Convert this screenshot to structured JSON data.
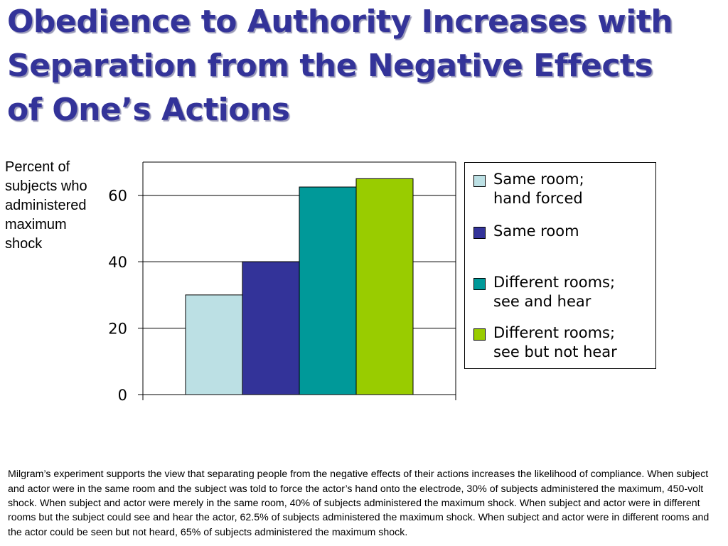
{
  "title": {
    "lines": [
      "Obedience to Authority Increases with",
      "Separation from the Negative Effects",
      "of One’s Actions"
    ]
  },
  "ylabel": {
    "lines": [
      "Percent of",
      "subjects who",
      "administered",
      "maximum",
      "shock"
    ]
  },
  "chart_data": {
    "type": "bar",
    "categories": [
      ""
    ],
    "series": [
      {
        "name": "Same room; hand forced",
        "values": [
          30
        ],
        "color": "#bce0e4"
      },
      {
        "name": "Same room",
        "values": [
          40
        ],
        "color": "#333399"
      },
      {
        "name": "Different rooms; see and hear",
        "values": [
          62.5
        ],
        "color": "#009999"
      },
      {
        "name": "Different rooms; see but not hear",
        "values": [
          65
        ],
        "color": "#99cc00"
      }
    ],
    "ylabel": "Percent of subjects who administered maximum shock",
    "ylim": [
      0,
      70
    ],
    "yticks": [
      0,
      20,
      40,
      60
    ],
    "grid": true,
    "legend": "right"
  },
  "legend": {
    "items": [
      {
        "lines": [
          "Same room;",
          "hand forced"
        ],
        "color": "#bce0e4"
      },
      {
        "lines": [
          "Same room"
        ],
        "color": "#333399"
      },
      {
        "lines": [
          "Different rooms;",
          "see and hear"
        ],
        "color": "#009999"
      },
      {
        "lines": [
          "Different rooms;",
          "see but not hear"
        ],
        "color": "#99cc00"
      }
    ]
  },
  "caption": "Milgram’s experiment supports the view that separating people from the negative effects of their actions increases the likelihood of compliance. When subject and actor were in the same room and the subject was told to force the actor’s hand onto the electrode, 30% of subjects administered the maximum, 450-volt shock. When subject and actor were merely in the same room, 40% of subjects administered the maximum shock. When subject and actor were in different rooms but the subject could see and hear the actor, 62.5% of subjects administered the maximum shock. When subject and actor were in different rooms and the actor could be seen but not heard, 65% of subjects administered the maximum shock."
}
